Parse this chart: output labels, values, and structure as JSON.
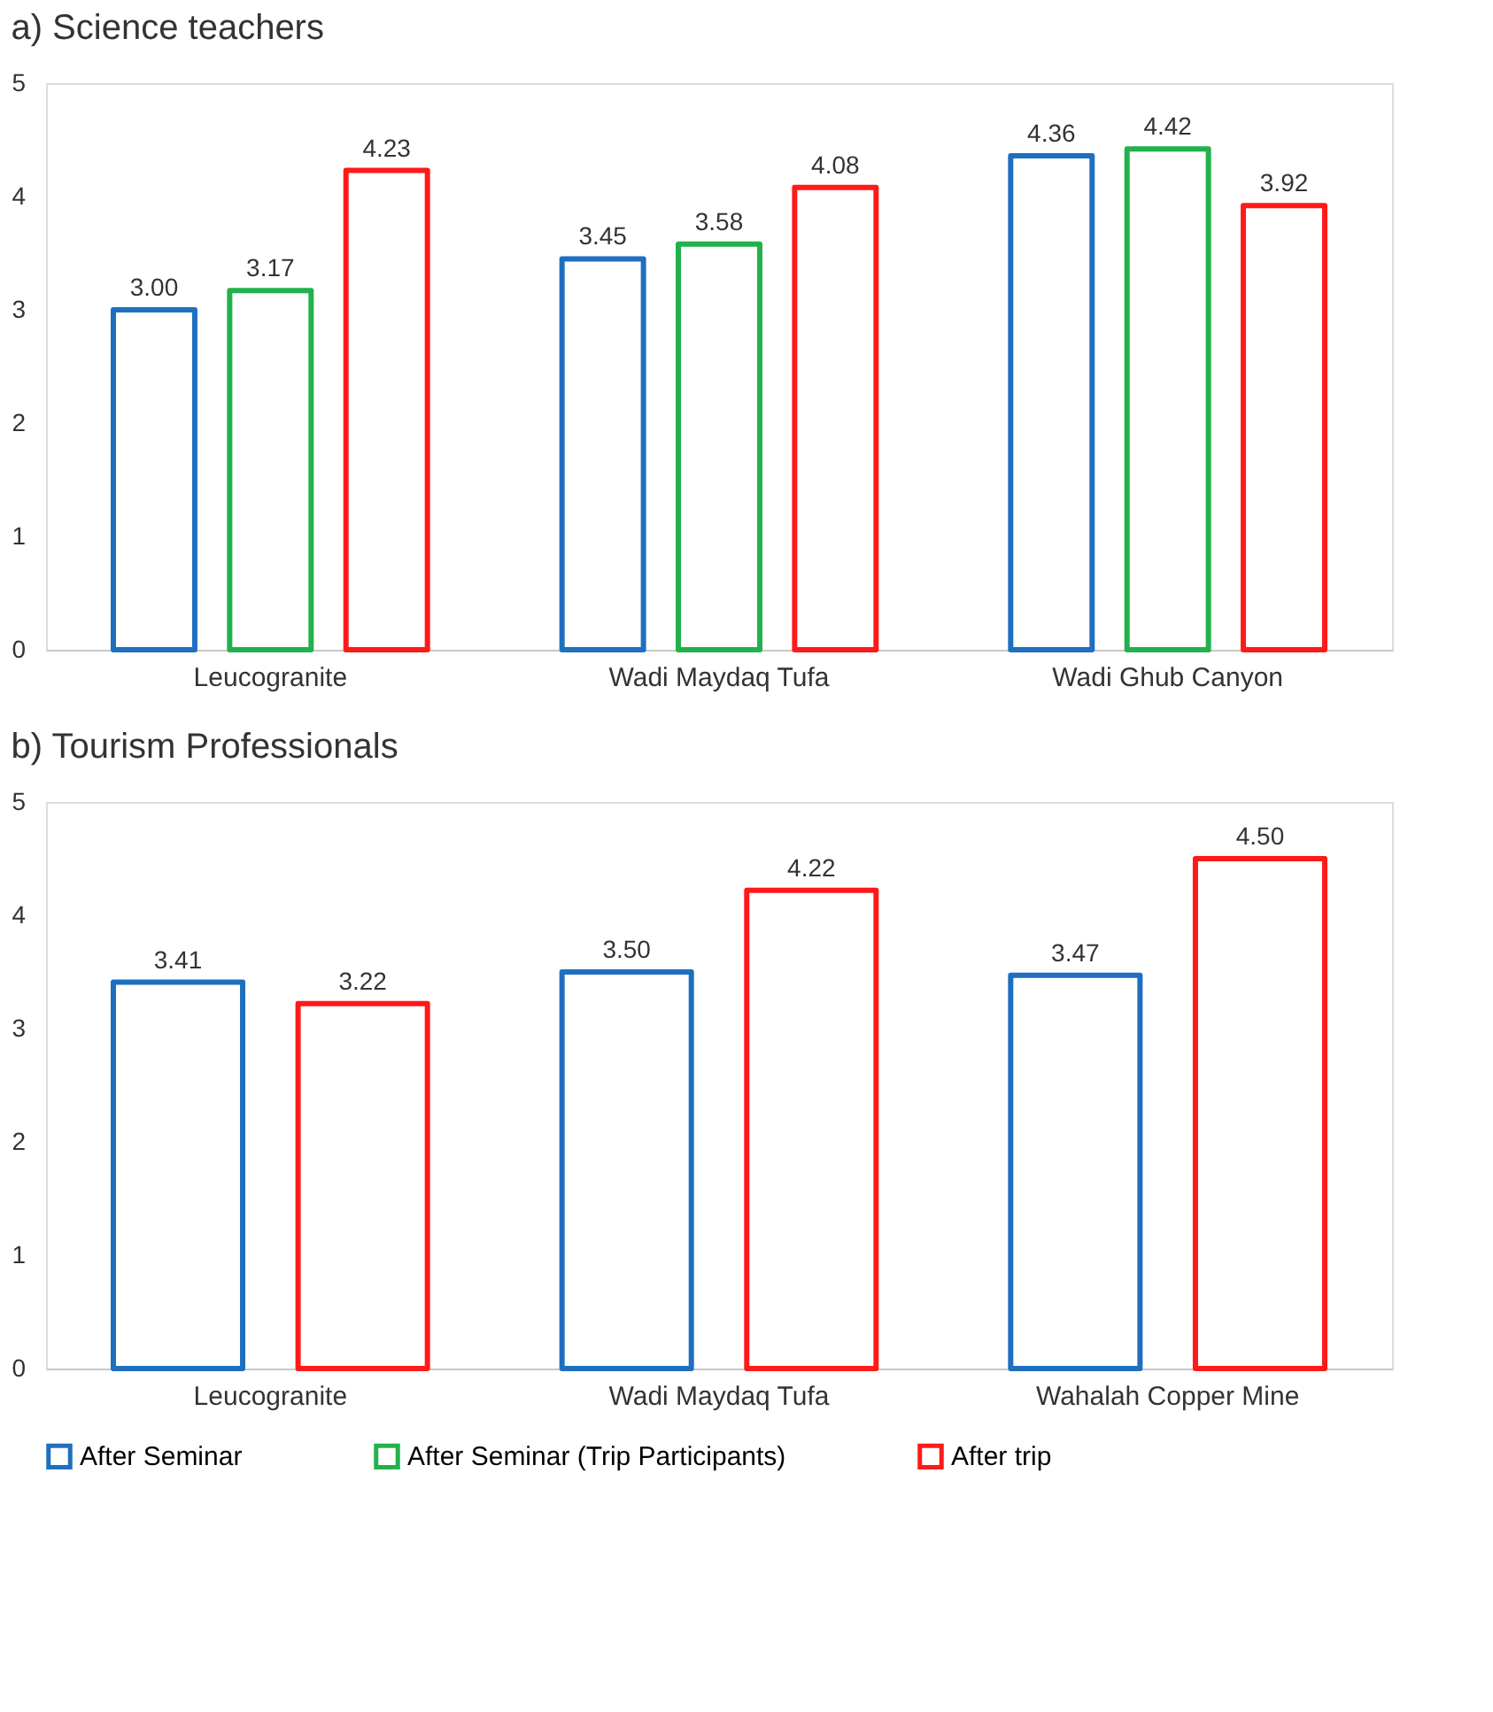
{
  "chart_data": [
    {
      "type": "bar",
      "title": "a) Science teachers",
      "categories": [
        "Leucogranite",
        "Wadi Maydaq Tufa",
        "Wadi Ghub Canyon"
      ],
      "series": [
        {
          "name": "After Seminar",
          "color": "#1f6fc0",
          "values": [
            3.0,
            3.45,
            4.36
          ],
          "value_labels": [
            "3.00",
            "3.45",
            "4.36"
          ]
        },
        {
          "name": "After Seminar (Trip Participants)",
          "color": "#22b14c",
          "values": [
            3.17,
            3.58,
            4.42
          ],
          "value_labels": [
            "3.17",
            "3.58",
            "4.42"
          ]
        },
        {
          "name": "After trip",
          "color": "#ff1a1a",
          "values": [
            4.23,
            4.08,
            3.92
          ],
          "value_labels": [
            "4.23",
            "4.08",
            "3.92"
          ]
        }
      ],
      "ylim": [
        0,
        5
      ],
      "yticks": [
        0,
        1,
        2,
        3,
        4,
        5
      ],
      "grid": false,
      "legend": "bottom"
    },
    {
      "type": "bar",
      "title": "b) Tourism Professionals",
      "categories": [
        "Leucogranite",
        "Wadi Maydaq Tufa",
        "Wahalah Copper Mine"
      ],
      "series": [
        {
          "name": "After Seminar",
          "color": "#1f6fc0",
          "values": [
            3.41,
            3.5,
            3.47
          ],
          "value_labels": [
            "3.41",
            "3.50",
            "3.47"
          ]
        },
        {
          "name": "After trip",
          "color": "#ff1a1a",
          "values": [
            3.22,
            4.22,
            4.5
          ],
          "value_labels": [
            "3.22",
            "4.22",
            "4.50"
          ]
        }
      ],
      "ylim": [
        0,
        5
      ],
      "yticks": [
        0,
        1,
        2,
        3,
        4,
        5
      ],
      "grid": false,
      "legend": "bottom"
    }
  ]
}
